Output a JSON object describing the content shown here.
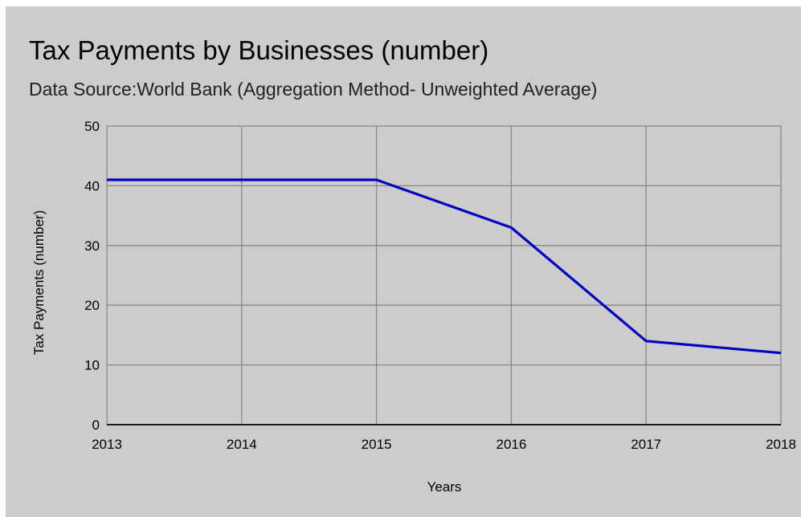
{
  "chart_data": {
    "type": "line",
    "title": "Tax Payments by Businesses (number)",
    "subtitle": "Data Source:World Bank (Aggregation Method- Unweighted Average)",
    "xlabel": "Years",
    "ylabel": "Tax Payments (number)",
    "x": [
      2013,
      2014,
      2015,
      2016,
      2017,
      2018
    ],
    "xlim": [
      2013,
      2018
    ],
    "ylim": [
      0,
      50
    ],
    "yticks": [
      0,
      10,
      20,
      30,
      40,
      50
    ],
    "grid": true,
    "legend": "none",
    "series": [
      {
        "values": [
          41,
          41,
          41,
          33,
          14,
          12
        ],
        "color": "#0000c0"
      }
    ]
  },
  "colors": {
    "background": "#cccccc",
    "gridline": "#888888",
    "axis": "#000000",
    "line": "#0000c0"
  }
}
